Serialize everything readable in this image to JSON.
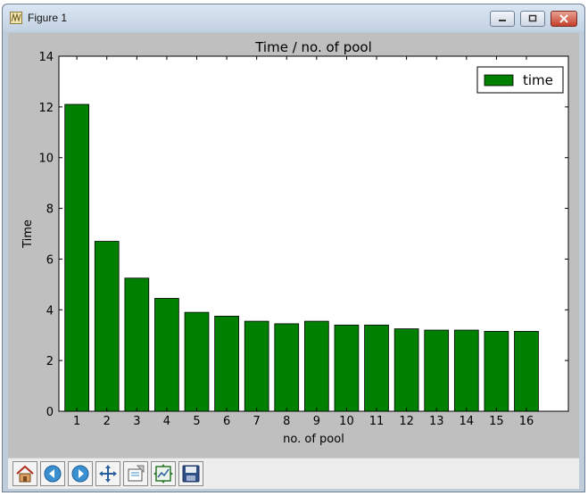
{
  "window": {
    "title": "Figure 1"
  },
  "toolbar": {
    "buttons": [
      {
        "name": "home-icon"
      },
      {
        "name": "back-icon"
      },
      {
        "name": "forward-icon"
      },
      {
        "name": "pan-icon"
      },
      {
        "name": "zoom-icon"
      },
      {
        "name": "configure-subplots-icon"
      },
      {
        "name": "save-icon"
      }
    ]
  },
  "colors": {
    "bar": "#008000",
    "axes_bg": "#ffffff",
    "figure_bg": "#bfbfbf"
  },
  "chart_data": {
    "type": "bar",
    "title": "Time / no. of pool",
    "xlabel": "no. of pool",
    "ylabel": "Time",
    "categories": [
      "1",
      "2",
      "3",
      "4",
      "5",
      "6",
      "7",
      "8",
      "9",
      "10",
      "11",
      "12",
      "13",
      "14",
      "15",
      "16"
    ],
    "series": [
      {
        "name": "time",
        "values": [
          12.1,
          6.7,
          5.25,
          4.45,
          3.9,
          3.75,
          3.55,
          3.45,
          3.55,
          3.4,
          3.4,
          3.25,
          3.2,
          3.2,
          3.15,
          3.15
        ]
      }
    ],
    "ylim": [
      0,
      14
    ],
    "yticks": [
      "0",
      "2",
      "4",
      "6",
      "8",
      "10",
      "12",
      "14"
    ],
    "xlim": [
      0.4,
      17.4
    ],
    "grid": false,
    "legend": "top-right"
  }
}
